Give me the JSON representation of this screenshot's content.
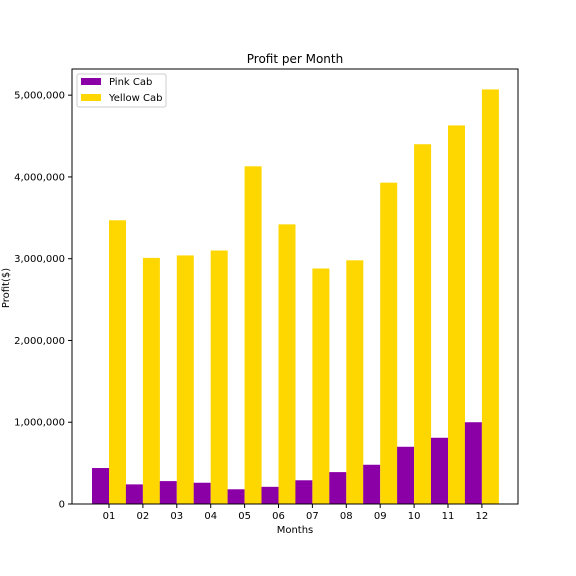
{
  "colors": {
    "pink_cab": "#8b00a6",
    "yellow_cab": "#ffd700",
    "axis": "#000000",
    "background": "#ffffff"
  },
  "chart_data": {
    "type": "bar",
    "title": "Profit per Month",
    "xlabel": "Months",
    "ylabel": "Profit($)",
    "categories": [
      "01",
      "02",
      "03",
      "04",
      "05",
      "06",
      "07",
      "08",
      "09",
      "10",
      "11",
      "12"
    ],
    "series": [
      {
        "name": "Pink Cab",
        "color": "#8b00a6",
        "values": [
          440000,
          240000,
          280000,
          260000,
          180000,
          210000,
          290000,
          390000,
          480000,
          700000,
          810000,
          1000000
        ]
      },
      {
        "name": "Yellow Cab",
        "color": "#ffd700",
        "values": [
          3470000,
          3010000,
          3040000,
          3100000,
          4130000,
          3420000,
          2880000,
          2980000,
          3930000,
          4400000,
          4630000,
          5070000
        ]
      }
    ],
    "ylim": [
      0,
      5320000
    ],
    "yticks": [
      0,
      1000000,
      2000000,
      3000000,
      4000000,
      5000000
    ],
    "ytick_labels": [
      "0",
      "1,000,000",
      "2,000,000",
      "3,000,000",
      "4,000,000",
      "5,000,000"
    ],
    "grid": false,
    "legend": "top-left"
  }
}
